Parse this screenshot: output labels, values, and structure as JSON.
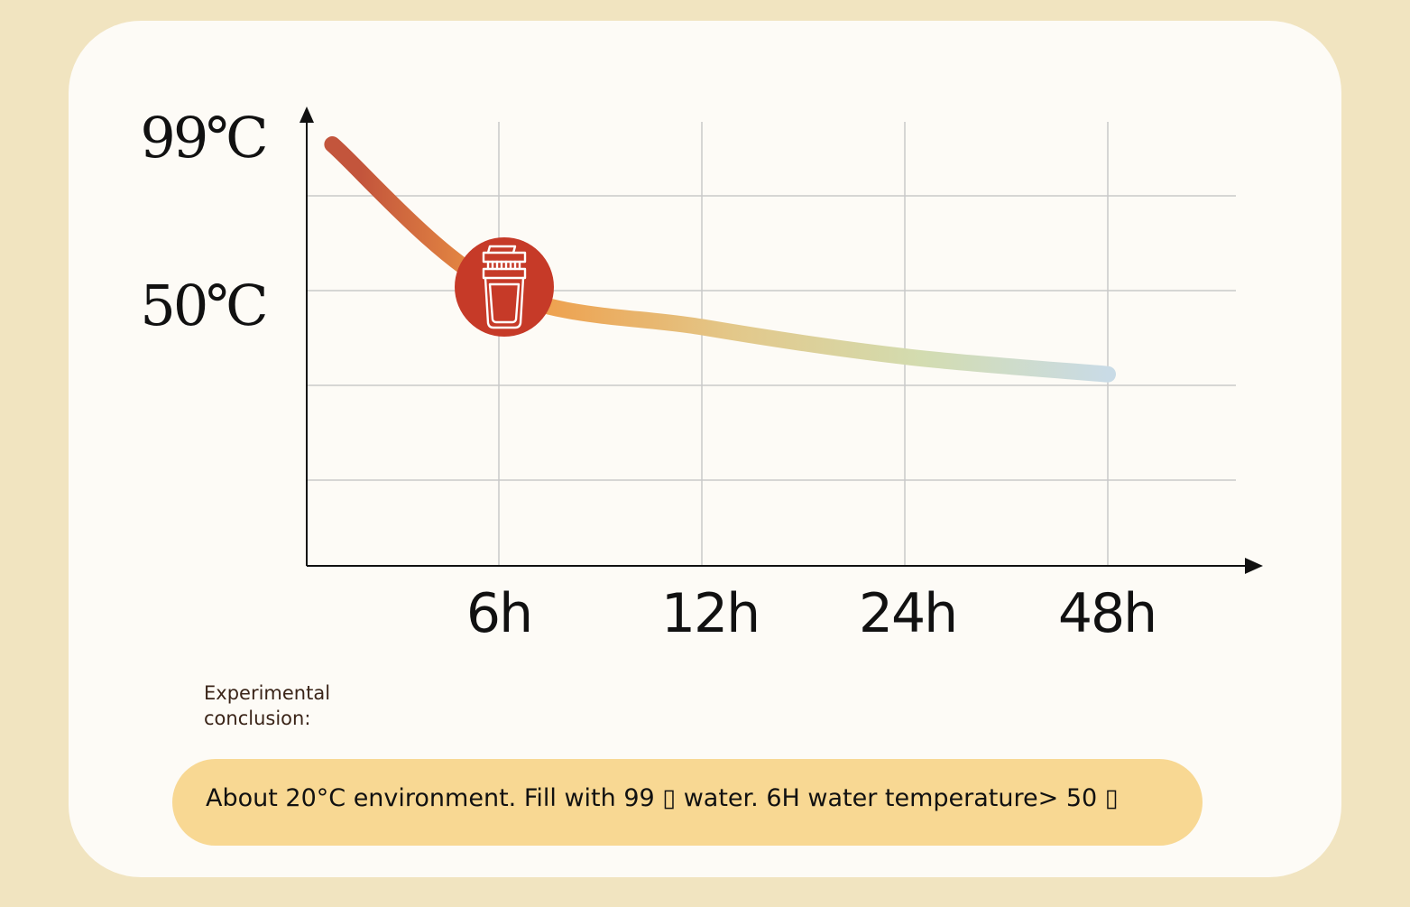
{
  "chart_data": {
    "type": "line",
    "title": "",
    "xlabel": "",
    "ylabel": "",
    "x_tick_labels": [
      "6h",
      "12h",
      "24h",
      "48h"
    ],
    "y_tick_labels": [
      "99℃",
      "50℃"
    ],
    "series": [
      {
        "x": [
          0.8,
          6,
          12,
          24,
          48
        ],
        "y": [
          99,
          50,
          37,
          27,
          21
        ]
      }
    ],
    "grid": true,
    "colors": {
      "hot": "#c3553c",
      "warm": "#f09a44",
      "mid": "#e3c88a",
      "cool": "#d3dcb0",
      "cold": "#c9dbe6"
    },
    "marker": {
      "icon": "thermos-cup-icon",
      "x": 6,
      "y": 50,
      "color": "#c63a28"
    }
  },
  "conclusion": {
    "label": "Experimental conclusion:",
    "text": "About 20°C environment. Fill with 99 ▯ water. 6H water temperature> 50 ▯"
  }
}
